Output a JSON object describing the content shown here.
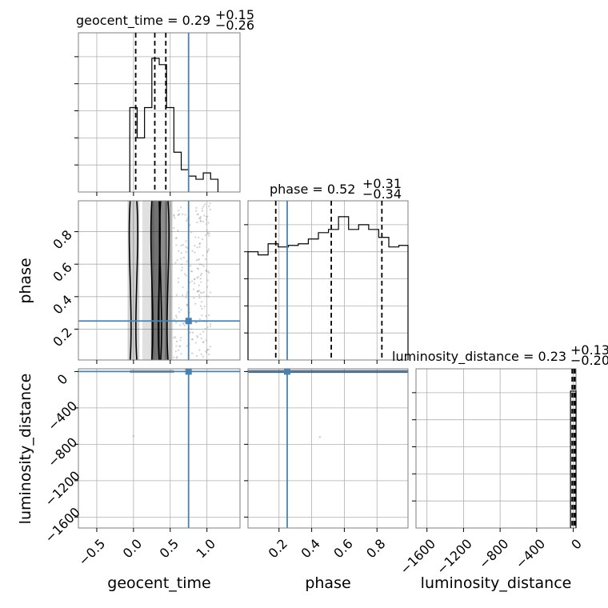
{
  "chart_data": {
    "type": "corner",
    "parameters": [
      {
        "key": "geocent_time",
        "label": "geocent_time",
        "range": [
          -0.75,
          1.45
        ],
        "ticks": [
          -0.5,
          0.0,
          0.5,
          1.0
        ],
        "tick_labels": [
          "−0.5",
          "0.0",
          "0.5",
          "1.0"
        ]
      },
      {
        "key": "phase",
        "label": "phase",
        "range": [
          0.01,
          0.99
        ],
        "ticks": [
          0.2,
          0.4,
          0.6,
          0.8
        ],
        "tick_labels": [
          "0.2",
          "0.4",
          "0.6",
          "0.8"
        ]
      },
      {
        "key": "luminosity_distance",
        "label": "luminosity_distance",
        "range": [
          -1720,
          30
        ],
        "ticks": [
          -1600,
          -1200,
          -800,
          -400,
          0
        ],
        "tick_labels": [
          "−1600",
          "−1200",
          "−800",
          "−400",
          "0"
        ]
      }
    ],
    "titles": [
      {
        "name": "geocent_time",
        "median": "0.29",
        "plus": "+0.15",
        "minus": "−0.26"
      },
      {
        "name": "phase",
        "median": "0.52",
        "plus": "+0.31",
        "minus": "−0.34"
      },
      {
        "name": "luminosity_distance",
        "median": "0.23",
        "plus": "+0.13",
        "minus": "−0.20"
      }
    ],
    "truths": {
      "geocent_time": 0.75,
      "phase": 0.25,
      "luminosity_distance": 0.23
    },
    "quantiles": {
      "geocent_time": [
        0.03,
        0.29,
        0.44
      ],
      "phase": [
        0.18,
        0.52,
        0.83
      ],
      "luminosity_distance": [
        0.03,
        0.23,
        0.36
      ]
    },
    "histograms": {
      "geocent_time": {
        "edges": [
          -0.05,
          0.05,
          0.15,
          0.25,
          0.35,
          0.45,
          0.55,
          0.65,
          0.75,
          0.85,
          0.95,
          1.05,
          1.15
        ],
        "counts": [
          0.53,
          0.34,
          0.53,
          0.84,
          0.8,
          0.53,
          0.25,
          0.14,
          0.1,
          0.08,
          0.12,
          0.08
        ]
      },
      "phase": {
        "edges": [
          0.01,
          0.0716,
          0.1332,
          0.1948,
          0.2564,
          0.318,
          0.3796,
          0.4412,
          0.5028,
          0.5644,
          0.626,
          0.6876,
          0.7492,
          0.8108,
          0.8724,
          0.934,
          0.99
        ],
        "counts": [
          0.68,
          0.66,
          0.73,
          0.71,
          0.72,
          0.73,
          0.76,
          0.8,
          0.82,
          0.9,
          0.82,
          0.85,
          0.82,
          0.77,
          0.71,
          0.72
        ]
      },
      "luminosity_distance": {
        "edges": [
          -30,
          0,
          30
        ],
        "counts": [
          0.86,
          0.86
        ]
      }
    },
    "grid": true
  }
}
